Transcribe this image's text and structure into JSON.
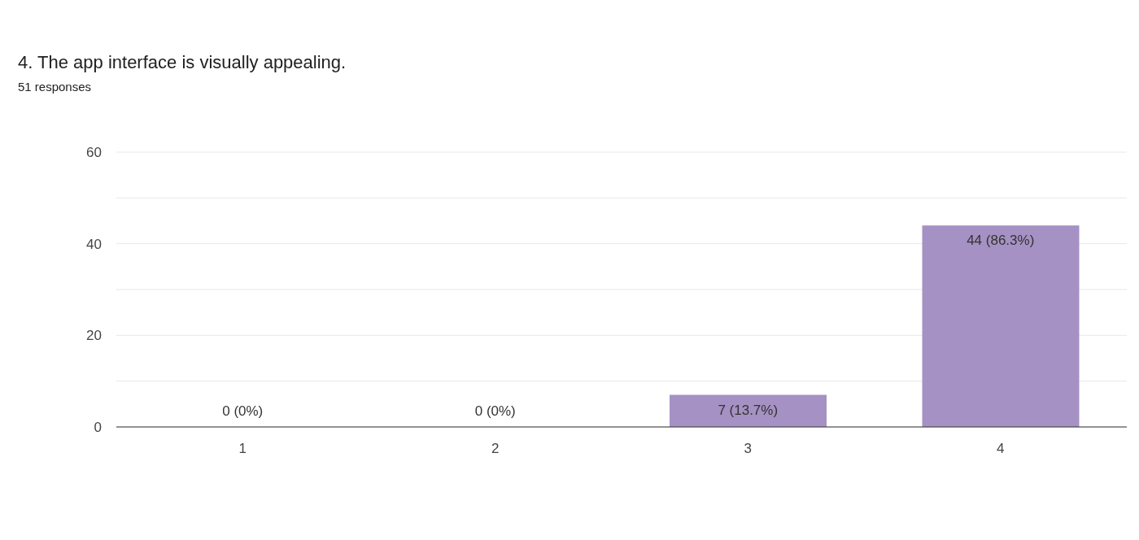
{
  "chart_data": {
    "type": "bar",
    "title": "4. The app interface is visually appealing.",
    "subtitle": "51 responses",
    "categories": [
      "1",
      "2",
      "3",
      "4"
    ],
    "values": [
      0,
      0,
      7,
      44
    ],
    "value_labels": [
      "0 (0%)",
      "0 (0%)",
      "7 (13.7%)",
      "44 (86.3%)"
    ],
    "color": "#a591c3",
    "ylim": [
      0,
      60
    ],
    "yticks": [
      0,
      {
        "value": 10,
        "label": null
      },
      20,
      {
        "value": 30,
        "label": null
      },
      40,
      {
        "value": 50,
        "label": null
      },
      60
    ],
    "grid": "y"
  }
}
